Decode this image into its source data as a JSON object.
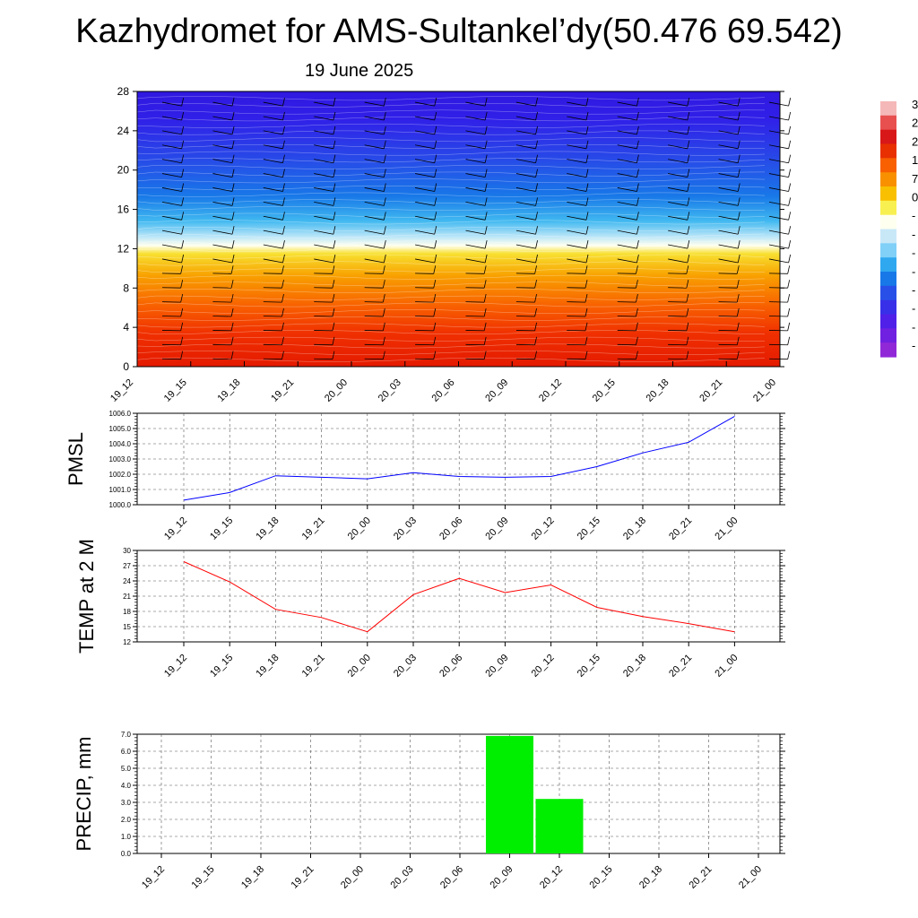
{
  "title": "Kazhydromet for AMS-Sultankel’dy(50.476 69.542)",
  "subtitle": "19 June 2025",
  "colors": {
    "pmsl_line": "#0000ff",
    "temp_line": "#ff0000",
    "precip_bar": "#00ee00",
    "wind_barb": "#000000",
    "contour_line": "#ffffff"
  },
  "chart_data": [
    {
      "id": "cross-section",
      "type": "heatmap",
      "description_field": "temperature cross-section with wind barbs",
      "x_labels": [
        "19_12",
        "19_15",
        "19_18",
        "19_21",
        "20_00",
        "20_03",
        "20_06",
        "20_09",
        "20_12",
        "20_15",
        "20_18",
        "20_21",
        "21_00"
      ],
      "y_ticks": [
        0,
        4,
        8,
        12,
        16,
        20,
        24,
        28
      ],
      "ylim": [
        0,
        28
      ],
      "colorbar_labels": [
        "3",
        "2",
        "2",
        "1",
        "7",
        "0",
        "-",
        "-",
        "-",
        "-",
        "-",
        "-",
        "-",
        "-"
      ],
      "colorbar_colors": [
        "#f5b8b8",
        "#e85050",
        "#d81818",
        "#e83000",
        "#f86000",
        "#f89000",
        "#f8c000",
        "#f8f050",
        "#fffff0",
        "#c8e8f8",
        "#80d0f8",
        "#30a8f0",
        "#1878e8",
        "#2850e8",
        "#3830e8",
        "#5020e8",
        "#7020e0",
        "#9028d8"
      ]
    },
    {
      "id": "pmsl",
      "type": "line",
      "ylabel": "PMSL",
      "x": [
        "19_12",
        "19_15",
        "19_18",
        "19_21",
        "20_00",
        "20_03",
        "20_06",
        "20_09",
        "20_12",
        "20_15",
        "20_18",
        "20_21",
        "21_00"
      ],
      "values": [
        1000.3,
        1000.8,
        1001.9,
        1001.8,
        1001.7,
        1002.1,
        1001.85,
        1001.8,
        1001.85,
        1002.5,
        1003.4,
        1004.1,
        1005.8
      ],
      "ylim": [
        1000.0,
        1006.0
      ],
      "y_ticks": [
        "1000.0",
        "1001.0",
        "1002.0",
        "1003.0",
        "1004.0",
        "1005.0",
        "1006.0"
      ],
      "grid": true
    },
    {
      "id": "temp",
      "type": "line",
      "ylabel": "TEMP at 2 M",
      "x": [
        "19_12",
        "19_15",
        "19_18",
        "19_21",
        "20_00",
        "20_03",
        "20_06",
        "20_09",
        "20_12",
        "20_15",
        "20_18",
        "20_21",
        "21_00"
      ],
      "values": [
        27.8,
        23.8,
        18.4,
        16.8,
        14.0,
        21.3,
        24.5,
        21.7,
        23.2,
        18.8,
        17.0,
        15.6,
        14.0
      ],
      "ylim": [
        12,
        30
      ],
      "y_ticks": [
        "12",
        "15",
        "18",
        "21",
        "24",
        "27",
        "30"
      ],
      "grid": true
    },
    {
      "id": "precip",
      "type": "bar",
      "ylabel": "PRECIP, mm",
      "categories": [
        "19_12",
        "19_15",
        "19_18",
        "19_21",
        "20_00",
        "20_03",
        "20_06",
        "20_09",
        "20_12",
        "20_15",
        "20_18",
        "20_21",
        "21_00"
      ],
      "values": [
        0,
        0,
        0,
        0,
        0,
        0,
        0,
        6.9,
        3.2,
        0,
        0,
        0,
        0
      ],
      "ylim": [
        0,
        7.0
      ],
      "y_ticks": [
        "0.0",
        "1.0",
        "2.0",
        "3.0",
        "4.0",
        "5.0",
        "6.0",
        "7.0"
      ],
      "grid": true
    }
  ]
}
